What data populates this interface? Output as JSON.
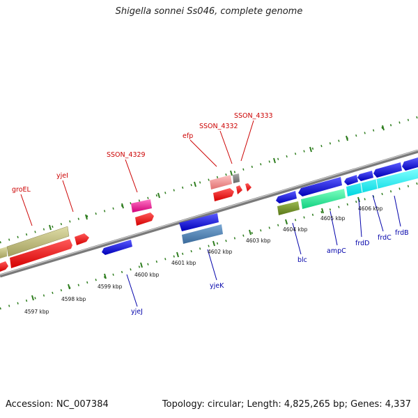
{
  "title": "Shigella sonnei Ss046, complete genome",
  "footer": {
    "accession": "Accession: NC_007384",
    "stats": "Topology: circular; Length: 4,825,265 bp; Genes: 4,337"
  },
  "colors": {
    "forward_label": "#cc0000",
    "reverse_label": "#0000aa",
    "backbone": "#8c8c8c",
    "tick": "#2e7d1e"
  },
  "position_labels": [
    "4597 kbp",
    "4598 kbp",
    "4599 kbp",
    "4600 kbp",
    "4601 kbp",
    "4602 kbp",
    "4603 kbp",
    "4604 kbp",
    "4605 kbp",
    "4606 kbp"
  ],
  "forward_genes": [
    "groEL",
    "yjeI",
    "SSON_4329",
    "efp",
    "SSON_4332",
    "SSON_4333"
  ],
  "reverse_genes": [
    "yjeJ",
    "yjeK",
    "blc",
    "ampC",
    "frdD",
    "frdC",
    "frdB"
  ]
}
